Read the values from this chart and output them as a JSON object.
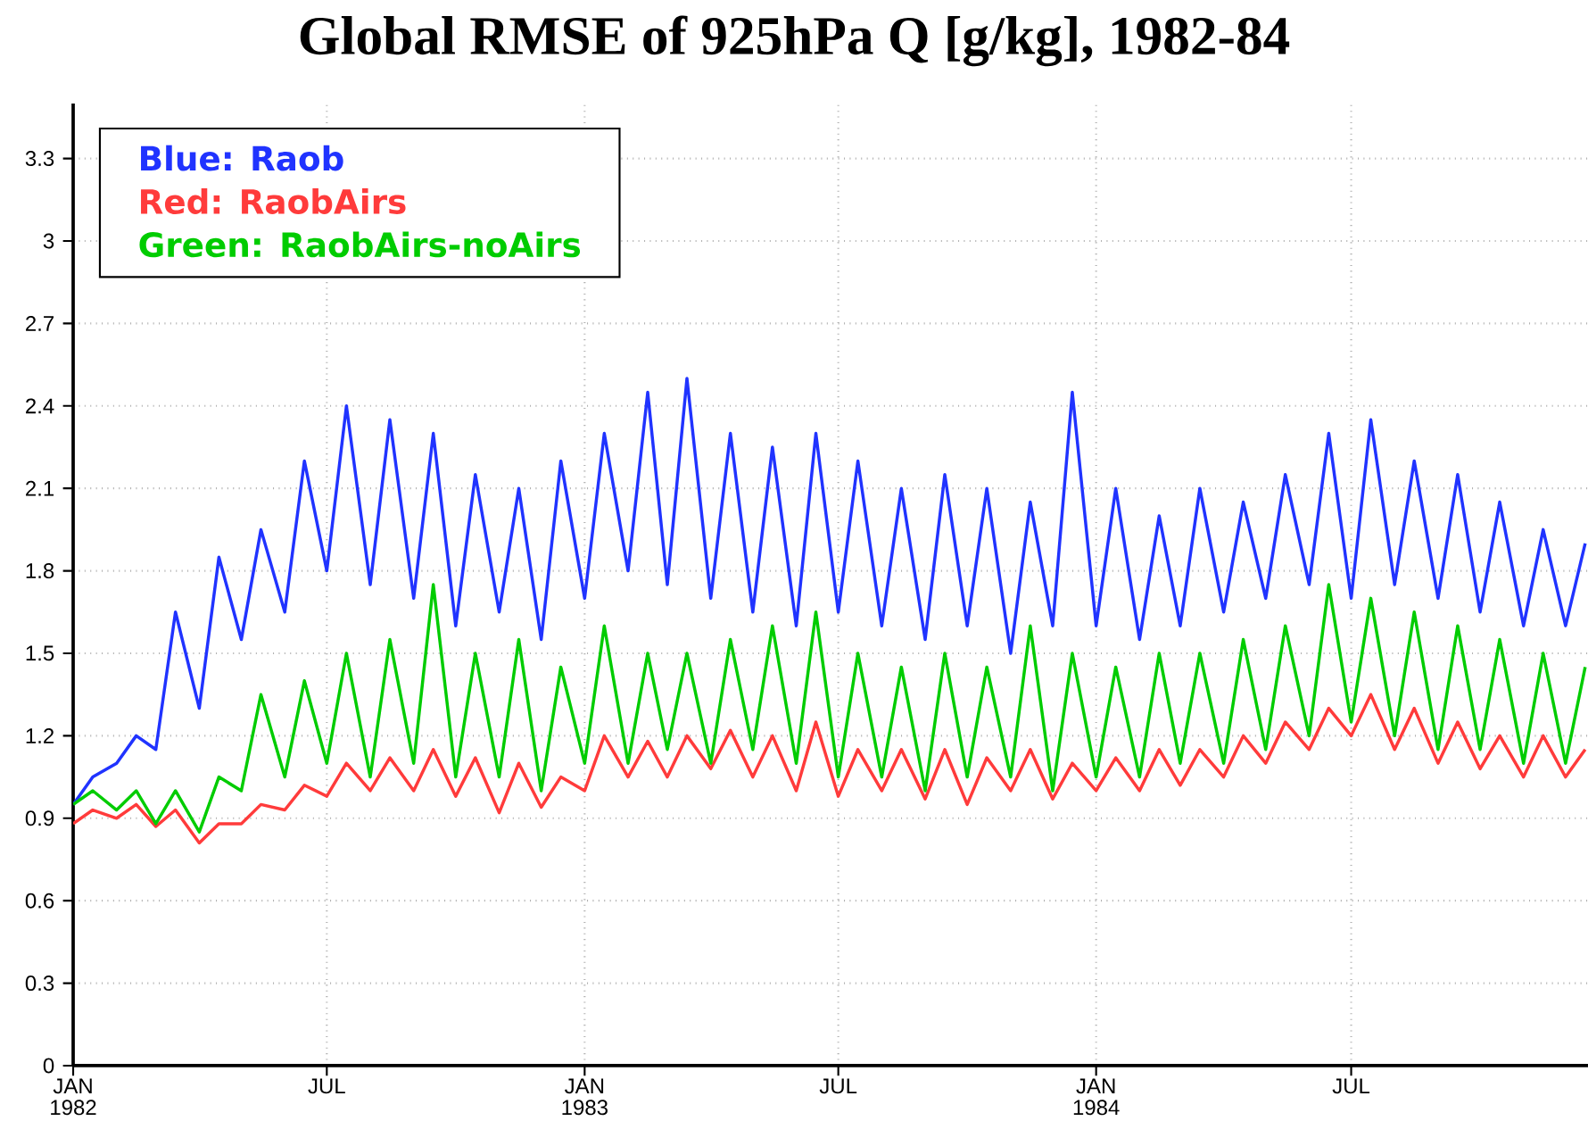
{
  "chart_data": {
    "type": "line",
    "title": "Global RMSE of 925hPa Q [g/kg], 1982-84",
    "x": [
      "1982-01-01",
      "1982-01-15",
      "1982-02-01",
      "1982-02-15",
      "1982-03-01",
      "1982-03-15",
      "1982-04-01",
      "1982-04-15",
      "1982-05-01",
      "1982-05-15",
      "1982-06-01",
      "1982-06-15",
      "1982-07-01",
      "1982-07-15",
      "1982-08-01",
      "1982-08-15",
      "1982-09-01",
      "1982-09-15",
      "1982-10-01",
      "1982-10-15",
      "1982-11-01",
      "1982-11-15",
      "1982-12-01",
      "1982-12-15",
      "1983-01-01",
      "1983-01-15",
      "1983-02-01",
      "1983-02-15",
      "1983-03-01",
      "1983-03-15",
      "1983-04-01",
      "1983-04-15",
      "1983-05-01",
      "1983-05-15",
      "1983-06-01",
      "1983-06-15",
      "1983-07-01",
      "1983-07-15",
      "1983-08-01",
      "1983-08-15",
      "1983-09-01",
      "1983-09-15",
      "1983-10-01",
      "1983-10-15",
      "1983-11-01",
      "1983-11-15",
      "1983-12-01",
      "1983-12-15",
      "1984-01-01",
      "1984-01-15",
      "1984-02-01",
      "1984-02-15",
      "1984-03-01",
      "1984-03-15",
      "1984-04-01",
      "1984-04-15",
      "1984-05-01",
      "1984-05-15",
      "1984-06-01",
      "1984-06-15",
      "1984-07-01",
      "1984-07-15",
      "1984-08-01",
      "1984-08-15",
      "1984-09-01",
      "1984-09-15",
      "1984-10-01",
      "1984-10-15",
      "1984-11-01",
      "1984-11-15",
      "1984-12-01",
      "1984-12-15"
    ],
    "series": [
      {
        "name": "Blue:  Raob",
        "color": "#2033ff",
        "values": [
          0.95,
          1.05,
          1.1,
          1.2,
          1.15,
          1.65,
          1.3,
          1.85,
          1.55,
          1.95,
          1.65,
          2.2,
          1.8,
          2.4,
          1.75,
          2.35,
          1.7,
          2.3,
          1.6,
          2.15,
          1.65,
          2.1,
          1.55,
          2.2,
          1.7,
          2.3,
          1.8,
          2.45,
          1.75,
          2.5,
          1.7,
          2.3,
          1.65,
          2.25,
          1.6,
          2.3,
          1.65,
          2.2,
          1.6,
          2.1,
          1.55,
          2.15,
          1.6,
          2.1,
          1.5,
          2.05,
          1.6,
          2.45,
          1.6,
          2.1,
          1.55,
          2.0,
          1.6,
          2.1,
          1.65,
          2.05,
          1.7,
          2.15,
          1.75,
          2.3,
          1.7,
          2.35,
          1.75,
          2.2,
          1.7,
          2.15,
          1.65,
          2.05,
          1.6,
          1.95,
          1.6,
          1.9
        ]
      },
      {
        "name": "Red:   RaobAirs",
        "color": "#ff3b3b",
        "values": [
          0.88,
          0.93,
          0.9,
          0.95,
          0.87,
          0.93,
          0.81,
          0.88,
          0.88,
          0.95,
          0.93,
          1.02,
          0.98,
          1.1,
          1.0,
          1.12,
          1.0,
          1.15,
          0.98,
          1.12,
          0.92,
          1.1,
          0.94,
          1.05,
          1.0,
          1.2,
          1.05,
          1.18,
          1.05,
          1.2,
          1.08,
          1.22,
          1.05,
          1.2,
          1.0,
          1.25,
          0.98,
          1.15,
          1.0,
          1.15,
          0.97,
          1.15,
          0.95,
          1.12,
          1.0,
          1.15,
          0.97,
          1.1,
          1.0,
          1.12,
          1.0,
          1.15,
          1.02,
          1.15,
          1.05,
          1.2,
          1.1,
          1.25,
          1.15,
          1.3,
          1.2,
          1.35,
          1.15,
          1.3,
          1.1,
          1.25,
          1.08,
          1.2,
          1.05,
          1.2,
          1.05,
          1.15
        ]
      },
      {
        "name": "Green: RaobAirs-noAirs",
        "color": "#00cc00",
        "values": [
          0.95,
          1.0,
          0.93,
          1.0,
          0.88,
          1.0,
          0.85,
          1.05,
          1.0,
          1.35,
          1.05,
          1.4,
          1.1,
          1.5,
          1.05,
          1.55,
          1.1,
          1.75,
          1.05,
          1.5,
          1.05,
          1.55,
          1.0,
          1.45,
          1.1,
          1.6,
          1.1,
          1.5,
          1.15,
          1.5,
          1.1,
          1.55,
          1.15,
          1.6,
          1.1,
          1.65,
          1.05,
          1.5,
          1.05,
          1.45,
          1.0,
          1.5,
          1.05,
          1.45,
          1.05,
          1.6,
          1.0,
          1.5,
          1.05,
          1.45,
          1.05,
          1.5,
          1.1,
          1.5,
          1.1,
          1.55,
          1.15,
          1.6,
          1.2,
          1.75,
          1.25,
          1.7,
          1.2,
          1.65,
          1.15,
          1.6,
          1.15,
          1.55,
          1.1,
          1.5,
          1.1,
          1.45
        ]
      }
    ],
    "xlim": [
      "1982-01-01",
      "1984-12-17"
    ],
    "xticks": [
      {
        "value": "1982-01-01",
        "label": "JAN 1982"
      },
      {
        "value": "1982-07-01",
        "label": "JUL"
      },
      {
        "value": "1983-01-01",
        "label": "JAN 1983"
      },
      {
        "value": "1983-07-01",
        "label": "JUL"
      },
      {
        "value": "1984-01-01",
        "label": "JAN 1984"
      },
      {
        "value": "1984-07-01",
        "label": "JUL"
      }
    ],
    "ylim": [
      0,
      3.5
    ],
    "yticks": [
      0,
      0.3,
      0.6,
      0.9,
      1.2,
      1.5,
      1.8,
      2.1,
      2.4,
      2.7,
      3,
      3.3
    ],
    "grid": true,
    "legend": "top left",
    "marker": "none",
    "line_style": "solid"
  }
}
